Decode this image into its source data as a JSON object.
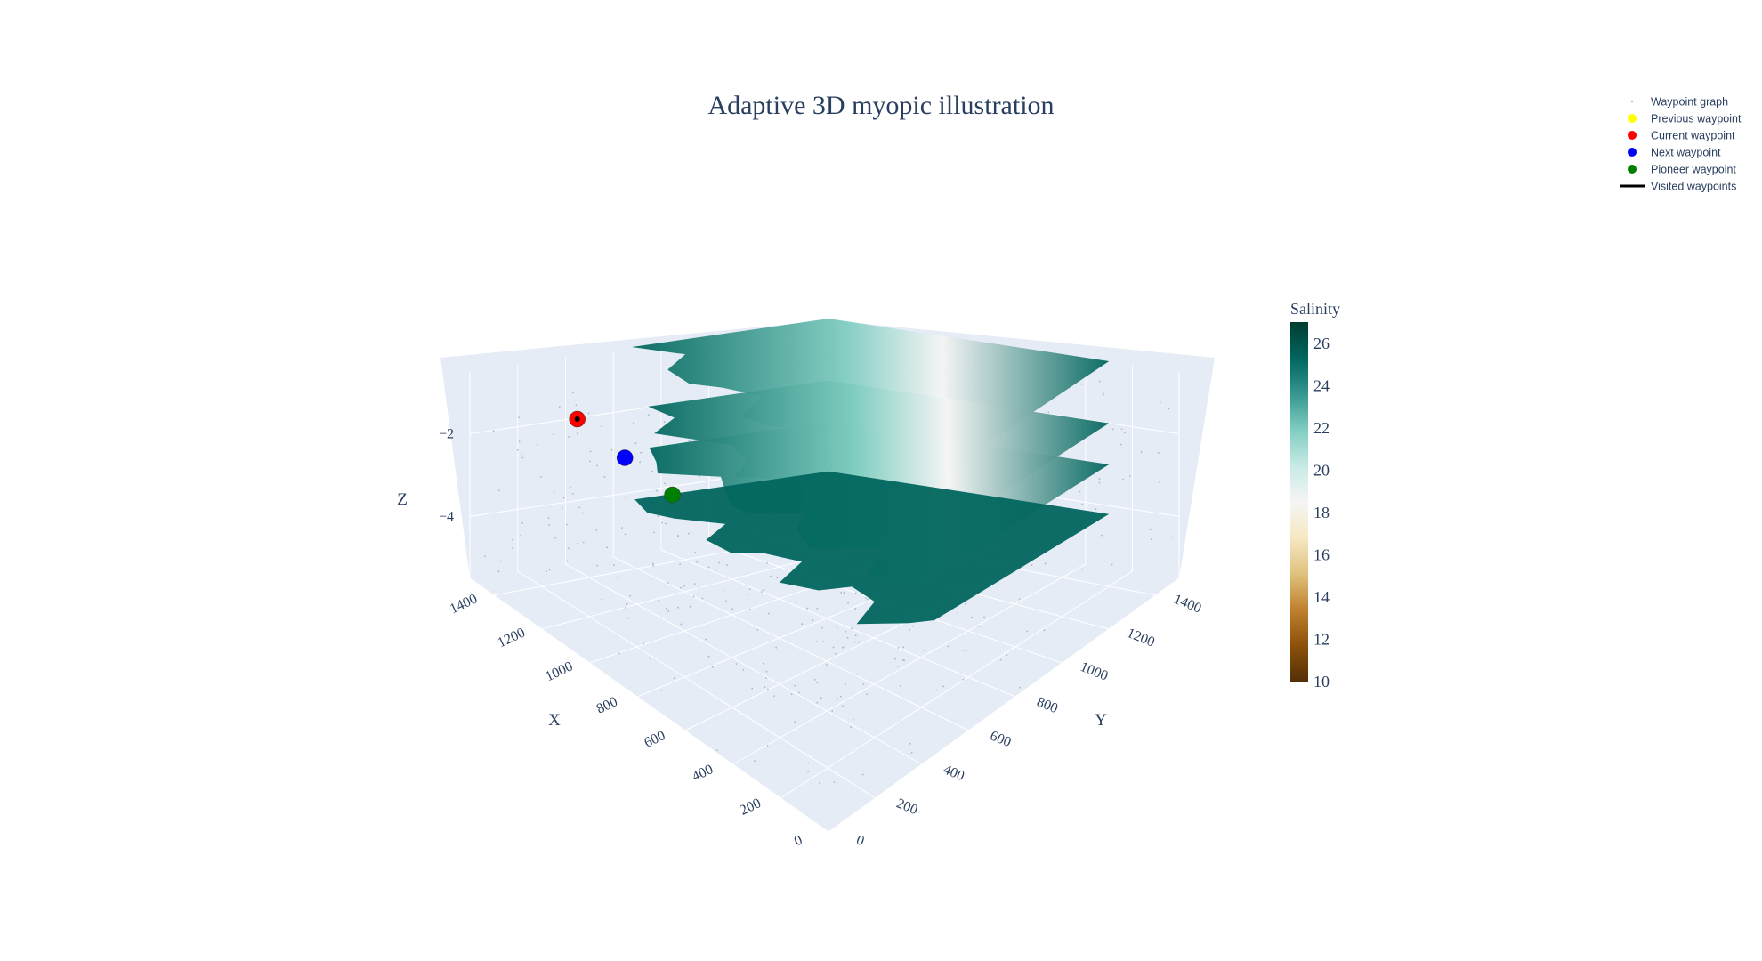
{
  "chart_data": {
    "type": "scatter3d+surface",
    "title": "Adaptive 3D myopic illustration",
    "scene": {
      "xaxis": {
        "title": "X",
        "ticks": [
          "0",
          "200",
          "400",
          "600",
          "800",
          "1000",
          "1200",
          "1400"
        ],
        "range": [
          0,
          1500
        ]
      },
      "yaxis": {
        "title": "Y",
        "ticks": [
          "0",
          "200",
          "400",
          "600",
          "800",
          "1000",
          "1200",
          "1400"
        ],
        "range": [
          0,
          1500
        ]
      },
      "zaxis": {
        "title": "Z",
        "ticks": [
          "−2",
          "−4"
        ],
        "range": [
          -5.5,
          -0.5
        ]
      },
      "background": "#e5ecf6",
      "grid": true
    },
    "colorbar": {
      "title": "Salinity",
      "ticks": [
        "26",
        "24",
        "22",
        "20",
        "18",
        "16",
        "14",
        "12",
        "10"
      ],
      "range": [
        10,
        27
      ],
      "colorscale": [
        "#543005",
        "#8c510a",
        "#bf812d",
        "#dfc27d",
        "#f6e8c3",
        "#f5f5f5",
        "#c7eae5",
        "#80cdc1",
        "#35978f",
        "#01665e",
        "#003c30"
      ]
    },
    "surfaces": [
      {
        "z": -0.5
      },
      {
        "z": -2.0
      },
      {
        "z": -3.0
      },
      {
        "z": -4.2
      }
    ],
    "points": [
      {
        "name": "Current waypoint",
        "color": "#ff0000",
        "x": 1200,
        "y": 150,
        "z": -0.5
      },
      {
        "name": "Next waypoint",
        "color": "#0000ff",
        "x": 1150,
        "y": 300,
        "z": -1.5
      },
      {
        "name": "Pioneer waypoint",
        "color": "#008000",
        "x": 1100,
        "y": 450,
        "z": -2.5
      }
    ],
    "legend": {
      "position": "top-right",
      "entries": [
        {
          "label": "Waypoint graph",
          "symbol": "point",
          "color": "#aab8c8"
        },
        {
          "label": "Previous waypoint",
          "symbol": "dot",
          "color": "#ffff00"
        },
        {
          "label": "Current waypoint",
          "symbol": "dot",
          "color": "#ff0000"
        },
        {
          "label": "Next waypoint",
          "symbol": "dot",
          "color": "#0000ff"
        },
        {
          "label": "Pioneer waypoint",
          "symbol": "dot",
          "color": "#008000"
        },
        {
          "label": "Visited waypoints",
          "symbol": "line",
          "color": "#000000"
        }
      ]
    }
  }
}
